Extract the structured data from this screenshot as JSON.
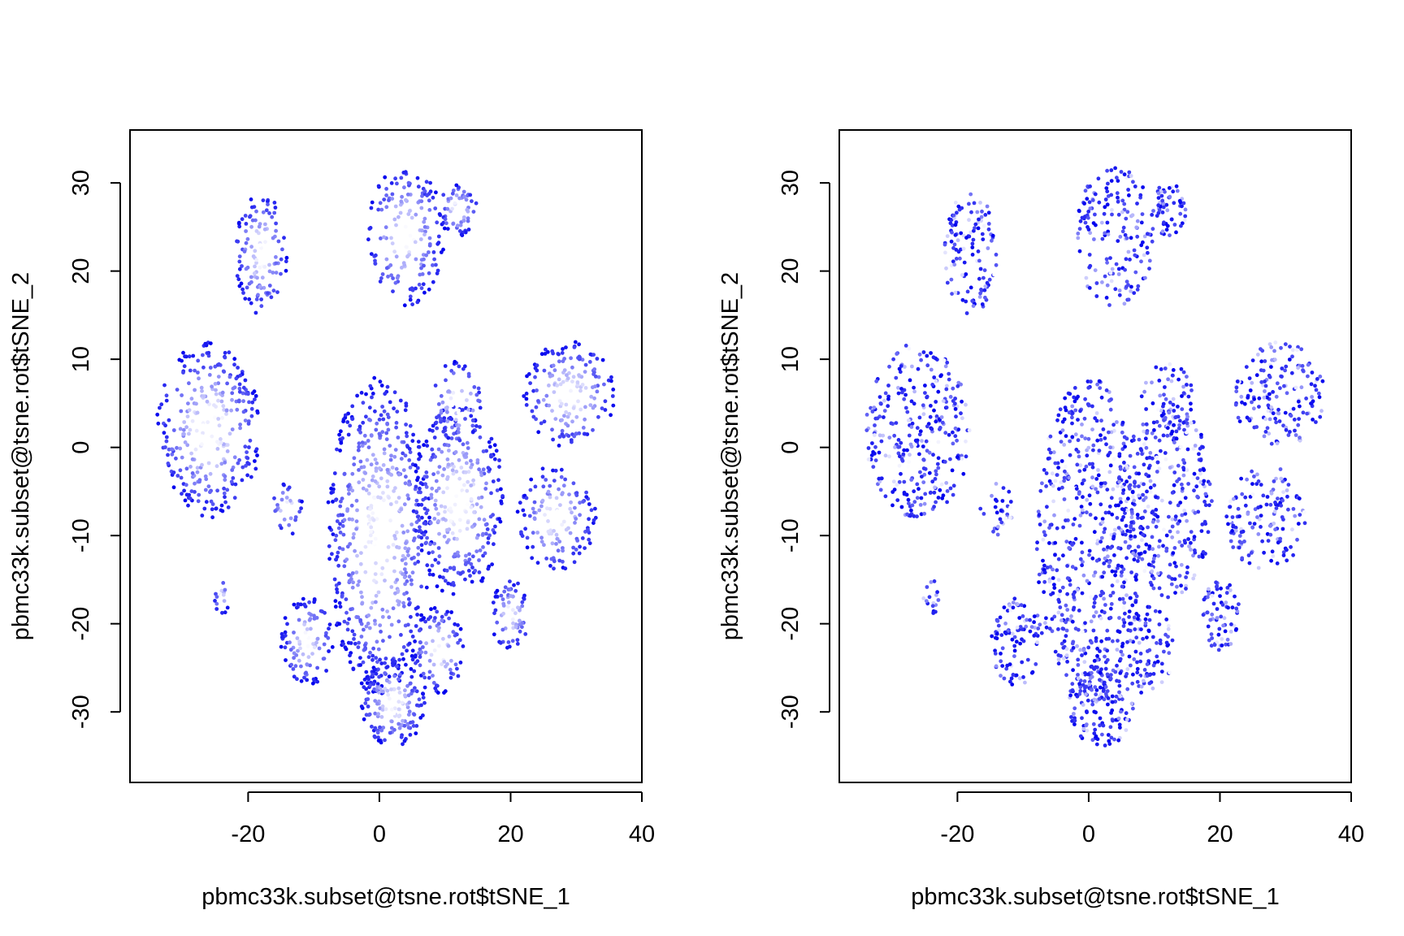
{
  "chart_data": [
    {
      "type": "scatter",
      "xlabel": "pbmc33k.subset@tsne.rot$tSNE_1",
      "ylabel": "pbmc33k.subset@tsne.rot$tSNE_2",
      "xlim": [
        -38,
        40
      ],
      "ylim": [
        -38,
        36
      ],
      "xticks": [
        -20,
        0,
        20,
        40
      ],
      "yticks": [
        -30,
        -20,
        -10,
        0,
        10,
        20,
        30
      ],
      "xtick_labels": [
        "-20",
        "0",
        "20",
        "40"
      ],
      "ytick_labels": [
        "-30",
        "-20",
        "-10",
        "0",
        "10",
        "20",
        "30"
      ],
      "color_low": "#0000ee",
      "color_high": "#ffffff",
      "pattern": "edge-dark",
      "clusters": [
        {
          "cx": 0,
          "cy": -10,
          "rx": 8,
          "ry": 18,
          "n": 560
        },
        {
          "cx": 12,
          "cy": -6,
          "rx": 7,
          "ry": 11,
          "n": 320
        },
        {
          "cx": -26,
          "cy": 2,
          "rx": 8,
          "ry": 10,
          "n": 300
        },
        {
          "cx": -18,
          "cy": 22,
          "rx": 4,
          "ry": 7,
          "n": 120
        },
        {
          "cx": 4,
          "cy": 24,
          "rx": 6,
          "ry": 8,
          "n": 170
        },
        {
          "cx": 12,
          "cy": 27,
          "rx": 3,
          "ry": 3,
          "n": 60
        },
        {
          "cx": 29,
          "cy": 6,
          "rx": 7,
          "ry": 6,
          "n": 170
        },
        {
          "cx": 12,
          "cy": 5,
          "rx": 4,
          "ry": 5,
          "n": 70
        },
        {
          "cx": 27,
          "cy": -8,
          "rx": 6,
          "ry": 6,
          "n": 140
        },
        {
          "cx": 2,
          "cy": -29,
          "rx": 5,
          "ry": 5,
          "n": 160
        },
        {
          "cx": -11,
          "cy": -22,
          "rx": 4,
          "ry": 5,
          "n": 100
        },
        {
          "cx": 20,
          "cy": -19,
          "rx": 3,
          "ry": 4,
          "n": 70
        },
        {
          "cx": 9,
          "cy": -23,
          "rx": 4,
          "ry": 5,
          "n": 90
        },
        {
          "cx": -24,
          "cy": -17,
          "rx": 1.2,
          "ry": 2,
          "n": 16
        },
        {
          "cx": -14,
          "cy": -7,
          "rx": 2.5,
          "ry": 3,
          "n": 30
        }
      ]
    },
    {
      "type": "scatter",
      "xlabel": "pbmc33k.subset@tsne.rot$tSNE_1",
      "ylabel": "pbmc33k.subset@tsne.rot$tSNE_2",
      "xlim": [
        -38,
        40
      ],
      "ylim": [
        -38,
        36
      ],
      "xticks": [
        -20,
        0,
        20,
        40
      ],
      "yticks": [
        -30,
        -20,
        -10,
        0,
        10,
        20,
        30
      ],
      "xtick_labels": [
        "-20",
        "0",
        "20",
        "40"
      ],
      "ytick_labels": [
        "-30",
        "-20",
        "-10",
        "0",
        "10",
        "20",
        "30"
      ],
      "color_low": "#0000ee",
      "color_high": "#ffffff",
      "pattern": "mixed",
      "clusters": [
        {
          "cx": 0,
          "cy": -10,
          "rx": 8,
          "ry": 18,
          "n": 560
        },
        {
          "cx": 12,
          "cy": -6,
          "rx": 7,
          "ry": 11,
          "n": 320
        },
        {
          "cx": -26,
          "cy": 2,
          "rx": 8,
          "ry": 10,
          "n": 300
        },
        {
          "cx": -18,
          "cy": 22,
          "rx": 4,
          "ry": 7,
          "n": 120
        },
        {
          "cx": 4,
          "cy": 24,
          "rx": 6,
          "ry": 8,
          "n": 170
        },
        {
          "cx": 12,
          "cy": 27,
          "rx": 3,
          "ry": 3,
          "n": 60
        },
        {
          "cx": 29,
          "cy": 6,
          "rx": 7,
          "ry": 6,
          "n": 170
        },
        {
          "cx": 12,
          "cy": 5,
          "rx": 4,
          "ry": 5,
          "n": 70
        },
        {
          "cx": 27,
          "cy": -8,
          "rx": 6,
          "ry": 6,
          "n": 140
        },
        {
          "cx": 2,
          "cy": -29,
          "rx": 5,
          "ry": 5,
          "n": 160
        },
        {
          "cx": -11,
          "cy": -22,
          "rx": 4,
          "ry": 5,
          "n": 100
        },
        {
          "cx": 20,
          "cy": -19,
          "rx": 3,
          "ry": 4,
          "n": 70
        },
        {
          "cx": 9,
          "cy": -23,
          "rx": 4,
          "ry": 5,
          "n": 90
        },
        {
          "cx": -24,
          "cy": -17,
          "rx": 1.2,
          "ry": 2,
          "n": 16
        },
        {
          "cx": -14,
          "cy": -7,
          "rx": 2.5,
          "ry": 3,
          "n": 30
        }
      ]
    }
  ]
}
